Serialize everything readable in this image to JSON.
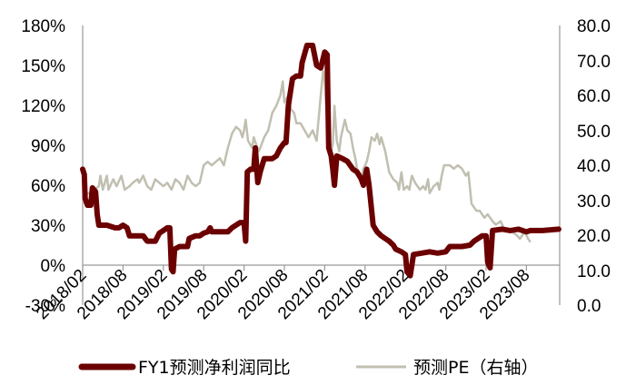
{
  "chart_data": {
    "type": "line",
    "title": "",
    "xlabel": "",
    "ylabel_left": "",
    "ylabel_right": "",
    "x_tick_labels": [
      "2018/02",
      "2018/08",
      "2019/02",
      "2019/08",
      "2020/02",
      "2020/08",
      "2021/02",
      "2021/08",
      "2022/02",
      "2022/08",
      "2023/02",
      "2023/08"
    ],
    "y_left": {
      "ticks": [
        "180%",
        "150%",
        "120%",
        "90%",
        "60%",
        "30%",
        "0%",
        "-30%"
      ],
      "tick_values": [
        180,
        150,
        120,
        90,
        60,
        30,
        0,
        -30
      ],
      "range": [
        -30,
        180
      ]
    },
    "y_right": {
      "ticks": [
        "80.0",
        "70.0",
        "60.0",
        "50.0",
        "40.0",
        "30.0",
        "20.0",
        "10.0",
        "0.0"
      ],
      "tick_values": [
        80,
        70,
        60,
        50,
        40,
        30,
        20,
        10,
        0
      ],
      "range": [
        0,
        80
      ]
    },
    "grid": false,
    "legend_position": "bottom",
    "series": [
      {
        "name": "FY1预测净利润同比",
        "axis": "left",
        "color": "#6b0000",
        "line_width": 6,
        "points": [
          [
            0.0,
            72
          ],
          [
            0.02,
            68
          ],
          [
            0.03,
            50
          ],
          [
            0.06,
            45
          ],
          [
            0.1,
            45
          ],
          [
            0.12,
            58
          ],
          [
            0.16,
            55
          ],
          [
            0.18,
            38
          ],
          [
            0.2,
            30
          ],
          [
            0.3,
            30
          ],
          [
            0.4,
            28
          ],
          [
            0.45,
            28
          ],
          [
            0.5,
            30
          ],
          [
            0.55,
            28
          ],
          [
            0.58,
            22
          ],
          [
            0.75,
            22
          ],
          [
            0.8,
            18
          ],
          [
            0.9,
            18
          ],
          [
            0.95,
            24
          ],
          [
            1.0,
            26
          ],
          [
            1.05,
            28
          ],
          [
            1.08,
            28
          ],
          [
            1.1,
            -3
          ],
          [
            1.12,
            -5
          ],
          [
            1.14,
            12
          ],
          [
            1.2,
            14
          ],
          [
            1.3,
            14
          ],
          [
            1.32,
            20
          ],
          [
            1.4,
            22
          ],
          [
            1.45,
            22
          ],
          [
            1.5,
            24
          ],
          [
            1.55,
            25
          ],
          [
            1.58,
            28
          ],
          [
            1.6,
            25
          ],
          [
            1.7,
            25
          ],
          [
            1.8,
            25
          ],
          [
            1.85,
            28
          ],
          [
            1.9,
            30
          ],
          [
            1.95,
            32
          ],
          [
            2.0,
            32
          ],
          [
            2.02,
            18
          ],
          [
            2.04,
            70
          ],
          [
            2.08,
            72
          ],
          [
            2.12,
            72
          ],
          [
            2.14,
            88
          ],
          [
            2.17,
            62
          ],
          [
            2.2,
            70
          ],
          [
            2.25,
            80
          ],
          [
            2.3,
            80
          ],
          [
            2.35,
            80
          ],
          [
            2.4,
            82
          ],
          [
            2.45,
            88
          ],
          [
            2.5,
            92
          ],
          [
            2.52,
            92
          ],
          [
            2.55,
            120
          ],
          [
            2.6,
            140
          ],
          [
            2.65,
            142
          ],
          [
            2.7,
            142
          ],
          [
            2.72,
            152
          ],
          [
            2.78,
            165
          ],
          [
            2.85,
            165
          ],
          [
            2.9,
            150
          ],
          [
            2.95,
            148
          ],
          [
            3.0,
            160
          ],
          [
            3.03,
            158
          ],
          [
            3.05,
            88
          ],
          [
            3.08,
            82
          ],
          [
            3.1,
            72
          ],
          [
            3.12,
            60
          ],
          [
            3.15,
            82
          ],
          [
            3.22,
            80
          ],
          [
            3.28,
            78
          ],
          [
            3.35,
            72
          ],
          [
            3.4,
            70
          ],
          [
            3.45,
            65
          ],
          [
            3.48,
            60
          ],
          [
            3.52,
            72
          ],
          [
            3.55,
            60
          ],
          [
            3.6,
            30
          ],
          [
            3.65,
            25
          ],
          [
            3.7,
            22
          ],
          [
            3.75,
            20
          ],
          [
            3.8,
            18
          ],
          [
            3.85,
            15
          ],
          [
            3.88,
            12
          ],
          [
            3.95,
            10
          ],
          [
            4.0,
            8
          ],
          [
            4.02,
            -5
          ],
          [
            4.06,
            -8
          ],
          [
            4.1,
            8
          ],
          [
            4.2,
            9
          ],
          [
            4.3,
            10
          ],
          [
            4.4,
            9
          ],
          [
            4.5,
            10
          ],
          [
            4.55,
            14
          ],
          [
            4.7,
            14
          ],
          [
            4.8,
            15
          ],
          [
            4.85,
            18
          ],
          [
            4.95,
            22
          ],
          [
            5.0,
            22
          ],
          [
            5.02,
            2
          ],
          [
            5.05,
            -2
          ],
          [
            5.08,
            26
          ],
          [
            5.2,
            27
          ],
          [
            5.3,
            26
          ],
          [
            5.4,
            27
          ],
          [
            5.5,
            25
          ],
          [
            5.55,
            26
          ],
          [
            5.7,
            26
          ],
          [
            5.9,
            27
          ]
        ]
      },
      {
        "name": "预测PE（右轴）",
        "axis": "right",
        "color": "#c1bfb0",
        "line_width": 2.5,
        "points": [
          [
            0.0,
            29
          ],
          [
            0.03,
            31
          ],
          [
            0.06,
            32
          ],
          [
            0.1,
            32
          ],
          [
            0.15,
            33
          ],
          [
            0.2,
            34
          ],
          [
            0.22,
            37
          ],
          [
            0.25,
            33
          ],
          [
            0.3,
            37
          ],
          [
            0.32,
            33
          ],
          [
            0.38,
            36
          ],
          [
            0.42,
            34
          ],
          [
            0.48,
            37
          ],
          [
            0.52,
            33
          ],
          [
            0.58,
            34
          ],
          [
            0.62,
            35
          ],
          [
            0.68,
            36
          ],
          [
            0.7,
            35
          ],
          [
            0.75,
            37
          ],
          [
            0.8,
            34
          ],
          [
            0.85,
            33
          ],
          [
            0.9,
            36
          ],
          [
            0.95,
            35
          ],
          [
            1.0,
            34
          ],
          [
            1.05,
            35
          ],
          [
            1.1,
            33
          ],
          [
            1.15,
            36
          ],
          [
            1.2,
            35
          ],
          [
            1.25,
            33
          ],
          [
            1.3,
            37
          ],
          [
            1.35,
            35
          ],
          [
            1.4,
            34
          ],
          [
            1.45,
            35
          ],
          [
            1.5,
            40
          ],
          [
            1.55,
            41
          ],
          [
            1.6,
            40
          ],
          [
            1.65,
            41
          ],
          [
            1.7,
            42
          ],
          [
            1.75,
            40
          ],
          [
            1.8,
            45
          ],
          [
            1.85,
            49
          ],
          [
            1.9,
            51
          ],
          [
            1.95,
            50
          ],
          [
            1.98,
            48
          ],
          [
            2.0,
            50
          ],
          [
            2.02,
            53
          ],
          [
            2.05,
            47
          ],
          [
            2.1,
            45
          ],
          [
            2.12,
            48
          ],
          [
            2.15,
            46
          ],
          [
            2.18,
            44
          ],
          [
            2.2,
            45
          ],
          [
            2.25,
            48
          ],
          [
            2.3,
            50
          ],
          [
            2.35,
            55
          ],
          [
            2.4,
            57
          ],
          [
            2.45,
            60
          ],
          [
            2.48,
            64
          ],
          [
            2.5,
            58
          ],
          [
            2.55,
            60
          ],
          [
            2.58,
            56
          ],
          [
            2.62,
            55
          ],
          [
            2.65,
            52
          ],
          [
            2.7,
            52
          ],
          [
            2.75,
            50
          ],
          [
            2.8,
            48
          ],
          [
            2.85,
            50
          ],
          [
            2.9,
            47
          ],
          [
            2.95,
            60
          ],
          [
            2.98,
            67
          ],
          [
            3.0,
            64
          ],
          [
            3.03,
            52
          ],
          [
            3.06,
            48
          ],
          [
            3.08,
            44
          ],
          [
            3.1,
            46
          ],
          [
            3.12,
            57
          ],
          [
            3.15,
            47
          ],
          [
            3.18,
            44
          ],
          [
            3.2,
            48
          ],
          [
            3.25,
            53
          ],
          [
            3.28,
            50
          ],
          [
            3.32,
            49
          ],
          [
            3.35,
            45
          ],
          [
            3.38,
            42
          ],
          [
            3.4,
            39
          ],
          [
            3.45,
            36
          ],
          [
            3.48,
            39
          ],
          [
            3.52,
            41
          ],
          [
            3.55,
            44
          ],
          [
            3.58,
            48
          ],
          [
            3.62,
            47
          ],
          [
            3.65,
            49
          ],
          [
            3.68,
            46
          ],
          [
            3.7,
            48
          ],
          [
            3.75,
            44
          ],
          [
            3.8,
            38
          ],
          [
            3.85,
            36
          ],
          [
            3.9,
            35
          ],
          [
            3.92,
            33
          ],
          [
            3.95,
            38
          ],
          [
            3.98,
            33
          ],
          [
            4.02,
            34
          ],
          [
            4.05,
            33
          ],
          [
            4.08,
            37
          ],
          [
            4.12,
            35
          ],
          [
            4.15,
            34
          ],
          [
            4.18,
            33
          ],
          [
            4.22,
            34
          ],
          [
            4.25,
            33
          ],
          [
            4.28,
            36
          ],
          [
            4.3,
            32
          ],
          [
            4.35,
            34
          ],
          [
            4.4,
            35
          ],
          [
            4.42,
            33
          ],
          [
            4.45,
            37
          ],
          [
            4.48,
            40
          ],
          [
            4.55,
            40
          ],
          [
            4.6,
            39
          ],
          [
            4.65,
            40
          ],
          [
            4.7,
            39
          ],
          [
            4.75,
            37
          ],
          [
            4.78,
            38
          ],
          [
            4.82,
            29
          ],
          [
            4.88,
            27
          ],
          [
            4.92,
            27
          ],
          [
            4.98,
            25
          ],
          [
            5.02,
            26
          ],
          [
            5.08,
            24
          ],
          [
            5.12,
            23
          ],
          [
            5.18,
            24
          ],
          [
            5.22,
            22
          ],
          [
            5.28,
            21
          ],
          [
            5.32,
            21
          ],
          [
            5.38,
            20
          ],
          [
            5.42,
            19
          ],
          [
            5.48,
            21
          ],
          [
            5.52,
            19
          ],
          [
            5.55,
            18
          ]
        ]
      }
    ]
  },
  "legend": {
    "items": [
      {
        "label": "FY1预测净利润同比",
        "color": "#6b0000"
      },
      {
        "label": "预测PE（右轴）",
        "color": "#c1bfb0"
      }
    ]
  }
}
